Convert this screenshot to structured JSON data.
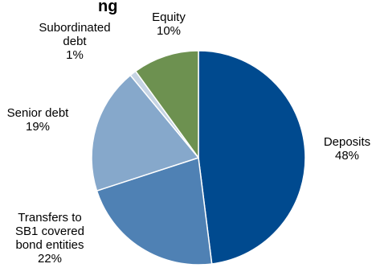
{
  "chart_data": {
    "type": "pie",
    "title_fragment": "ng",
    "slices": [
      {
        "label_lines": [
          "Deposits",
          "48%"
        ],
        "value": 48,
        "color": "#004A8F"
      },
      {
        "label_lines": [
          "Transfers to",
          "SB1 covered",
          "bond entities",
          "22%"
        ],
        "value": 22,
        "color": "#4F81B4"
      },
      {
        "label_lines": [
          "Senior debt",
          "19%"
        ],
        "value": 19,
        "color": "#86A8CB"
      },
      {
        "label_lines": [
          "Subordinated",
          "debt",
          "1%"
        ],
        "value": 1,
        "color": "#C6D4E4"
      },
      {
        "label_lines": [
          "Equity",
          "10%"
        ],
        "value": 10,
        "color": "#6D9150"
      }
    ]
  }
}
